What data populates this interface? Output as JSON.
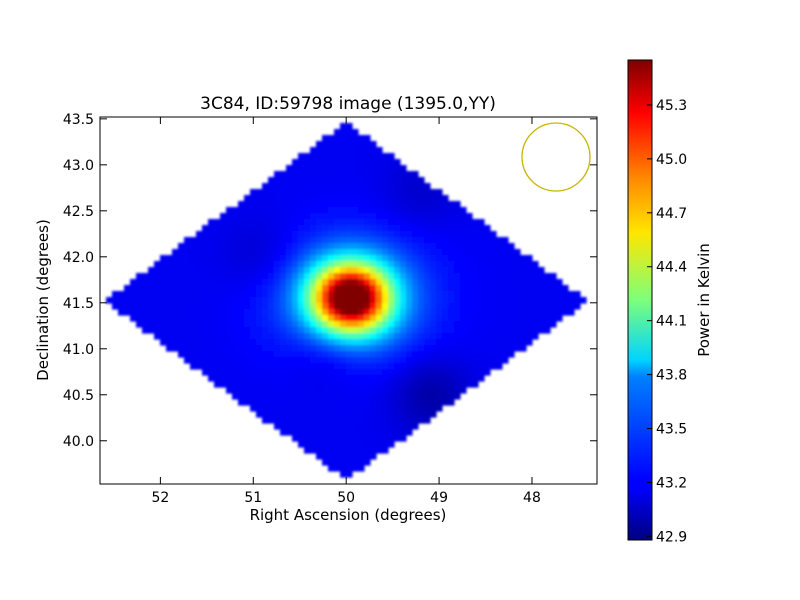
{
  "chart_data": {
    "type": "heatmap",
    "title": "3C84, ID:59798 image (1395.0,YY)",
    "xlabel": "Right Ascension (degrees)",
    "ylabel": "Declination (degrees)",
    "xlim": [
      52.65,
      47.3
    ],
    "ylim": [
      39.53,
      43.52
    ],
    "x_reversed": true,
    "xticks": [
      "52",
      "51",
      "50",
      "49",
      "48"
    ],
    "yticks": [
      "40.0",
      "40.5",
      "41.0",
      "41.5",
      "42.0",
      "42.5",
      "43.0",
      "43.5"
    ],
    "colorbar": {
      "label": "Power in Kelvin",
      "range": [
        42.88,
        45.55
      ],
      "ticks": [
        "42.9",
        "43.2",
        "43.5",
        "43.8",
        "44.1",
        "44.4",
        "44.7",
        "45.0",
        "45.3"
      ],
      "colormap": "jet"
    },
    "field": {
      "shape": "diamond",
      "center": [
        50.0,
        41.52
      ],
      "half_width_ra": 2.6,
      "half_height_dec": 1.95,
      "background_level": 43.18,
      "peak": {
        "ra": 49.95,
        "dec": 41.55,
        "level": 45.52
      },
      "low_regions": [
        {
          "ra": 50.2,
          "dec": 41.0,
          "level": 43.05
        },
        {
          "ra": 49.1,
          "dec": 40.5,
          "level": 42.98
        },
        {
          "ra": 50.9,
          "dec": 42.0,
          "level": 43.07
        },
        {
          "ra": 49.2,
          "dec": 42.7,
          "level": 43.08
        }
      ]
    },
    "beam_marker": {
      "shape": "circle",
      "color": "#c8b400"
    },
    "grid": false,
    "legend": "none"
  }
}
